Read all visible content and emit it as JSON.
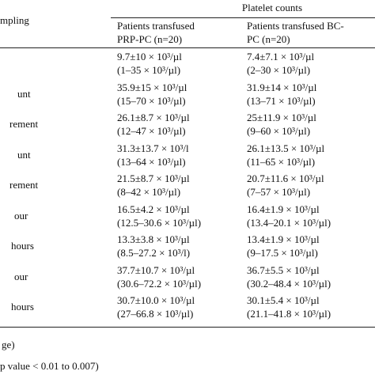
{
  "header": {
    "sampling": "mpling",
    "group": "Platelet counts",
    "columns": [
      [
        "Patients transfused",
        "PRP-PC (n=20)"
      ],
      [
        "Patients transfused BC-",
        "PC (n=20)"
      ]
    ]
  },
  "rows": [
    {
      "cells": [
        [
          "9.7±10 × 10³/µl",
          "(1–35 × 10³/µl)"
        ],
        [
          "7.4±7.1 × 10³/µl",
          "(2–30 × 10³/µl)"
        ]
      ]
    },
    {
      "label": "unt",
      "cells": [
        [
          "35.9±15 × 10³/µl",
          "(15–70 × 10³/µl)"
        ],
        [
          "31.9±14 × 10³/µl",
          "(13–71 × 10³/µl)"
        ]
      ]
    },
    {
      "label": "rement",
      "cells": [
        [
          "26.1±8.7 × 10³/µl",
          "(12–47 × 10³/µl)"
        ],
        [
          "25±11.9 × 10³/µl",
          "(9–60 × 10³/µl)"
        ]
      ]
    },
    {
      "label": "unt",
      "cells": [
        [
          "31.3±13.7 × 10³/l",
          "(13–64 × 10³/µl)"
        ],
        [
          "26.1±13.5 × 10³/µl",
          "(11–65 × 10³/µl)"
        ]
      ]
    },
    {
      "label": "rement",
      "cells": [
        [
          "21.5±8.7 × 10³/µl",
          "(8–42 × 10³/µl)"
        ],
        [
          "20.7±11.6 × 10³/µl",
          "(7–57 × 10³/µl)"
        ]
      ]
    },
    {
      "label": "our",
      "cells": [
        [
          "16.5±4.2 × 10³/µl",
          "(12.5–30.6 × 10³/µl)"
        ],
        [
          "16.4±1.9 × 10³/µl",
          "(13.4–20.1 × 10³/µl)"
        ]
      ]
    },
    {
      "label": "hours",
      "cells": [
        [
          "13.3±3.8 × 10³/µl",
          "(8.5–27.2 × 10³/l)"
        ],
        [
          "13.4±1.9 × 10³/µl",
          "(9–17.5 × 10³/µl)"
        ]
      ]
    },
    {
      "label": "our",
      "cells": [
        [
          "37.7±10.7 × 10³/µl",
          "(30.6–72.2 × 10³/µl)"
        ],
        [
          "36.7±5.5 × 10³/µl",
          "(30.2–48.4 × 10³/µl)"
        ]
      ]
    },
    {
      "label": "hours",
      "cells": [
        [
          "30.7±10.0 × 10³/µl",
          "(27–66.8 × 10³/µl)"
        ],
        [
          "30.1±5.4 × 10³/µl",
          "(21.1–41.8 × 10³/µl)"
        ]
      ]
    }
  ],
  "footnotes": [
    "ge)",
    "p value < 0.01 to 0.007)"
  ]
}
